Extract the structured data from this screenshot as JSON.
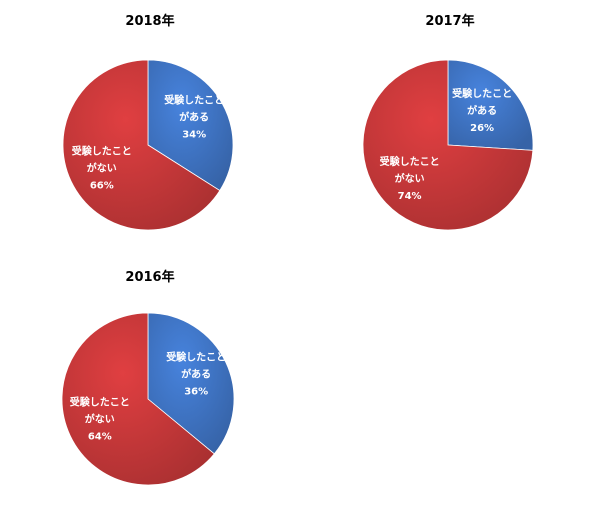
{
  "chart_data": [
    {
      "type": "pie",
      "title": "2018年",
      "categories": [
        "受験したことがある",
        "受験したことがない"
      ],
      "values": [
        34,
        66
      ],
      "labels": [
        {
          "line1": "受験したこと",
          "line2": "がある",
          "pct": "34%"
        },
        {
          "line1": "受験したこと",
          "line2": "がない",
          "pct": "66%"
        }
      ],
      "colors": [
        "#3f75c5",
        "#c8383a"
      ]
    },
    {
      "type": "pie",
      "title": "2017年",
      "categories": [
        "受験したことがある",
        "受験したことがない"
      ],
      "values": [
        26,
        74
      ],
      "labels": [
        {
          "line1": "受験したこと",
          "line2": "がある",
          "pct": "26%"
        },
        {
          "line1": "受験したこと",
          "line2": "がない",
          "pct": "74%"
        }
      ],
      "colors": [
        "#3f75c5",
        "#c8383a"
      ]
    },
    {
      "type": "pie",
      "title": "2016年",
      "categories": [
        "受験したことがある",
        "受験したことがない"
      ],
      "values": [
        36,
        64
      ],
      "labels": [
        {
          "line1": "受験したこと",
          "line2": "がある",
          "pct": "36%"
        },
        {
          "line1": "受験したこと",
          "line2": "がない",
          "pct": "64%"
        }
      ],
      "colors": [
        "#3f75c5",
        "#c8383a"
      ]
    }
  ]
}
